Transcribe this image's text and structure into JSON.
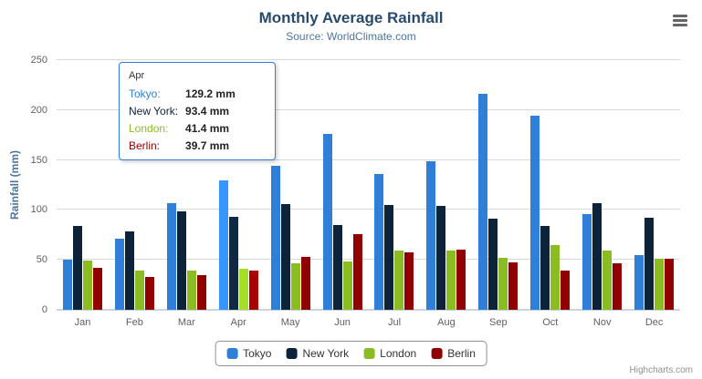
{
  "credits": "Highcharts.com",
  "chart_data": {
    "type": "bar",
    "title": "Monthly Average Rainfall",
    "subtitle": "Source: WorldClimate.com",
    "xlabel": "",
    "ylabel": "Rainfall (mm)",
    "ylim": [
      0,
      250
    ],
    "yticks": [
      0,
      50,
      100,
      150,
      200,
      250
    ],
    "grid": true,
    "legend_position": "bottom",
    "categories": [
      "Jan",
      "Feb",
      "Mar",
      "Apr",
      "May",
      "Jun",
      "Jul",
      "Aug",
      "Sep",
      "Oct",
      "Nov",
      "Dec"
    ],
    "series": [
      {
        "name": "Tokyo",
        "color": "#2f7ed8",
        "values": [
          49.9,
          71.5,
          106.4,
          129.2,
          144.0,
          176.0,
          135.6,
          148.5,
          216.4,
          194.1,
          95.6,
          54.4
        ]
      },
      {
        "name": "New York",
        "color": "#0d233a",
        "values": [
          83.6,
          78.8,
          98.5,
          93.4,
          106.0,
          84.5,
          105.0,
          104.3,
          91.2,
          83.5,
          106.6,
          92.3
        ]
      },
      {
        "name": "London",
        "color": "#8bbc21",
        "values": [
          48.9,
          38.8,
          39.3,
          41.4,
          47.0,
          48.3,
          59.0,
          59.6,
          52.4,
          65.2,
          59.3,
          51.2
        ]
      },
      {
        "name": "Berlin",
        "color": "#910000",
        "values": [
          42.4,
          33.2,
          34.5,
          39.7,
          52.6,
          75.5,
          57.4,
          60.4,
          47.6,
          39.1,
          46.8,
          51.1
        ]
      }
    ]
  },
  "tooltip": {
    "category": "Apr",
    "rows": [
      {
        "label": "Tokyo:",
        "value": "129.2 mm",
        "color": "#2f7ed8"
      },
      {
        "label": "New York:",
        "value": "93.4 mm",
        "color": "#0d233a"
      },
      {
        "label": "London:",
        "value": "41.4 mm",
        "color": "#8bbc21"
      },
      {
        "label": "Berlin:",
        "value": "39.7 mm",
        "color": "#910000"
      }
    ]
  }
}
